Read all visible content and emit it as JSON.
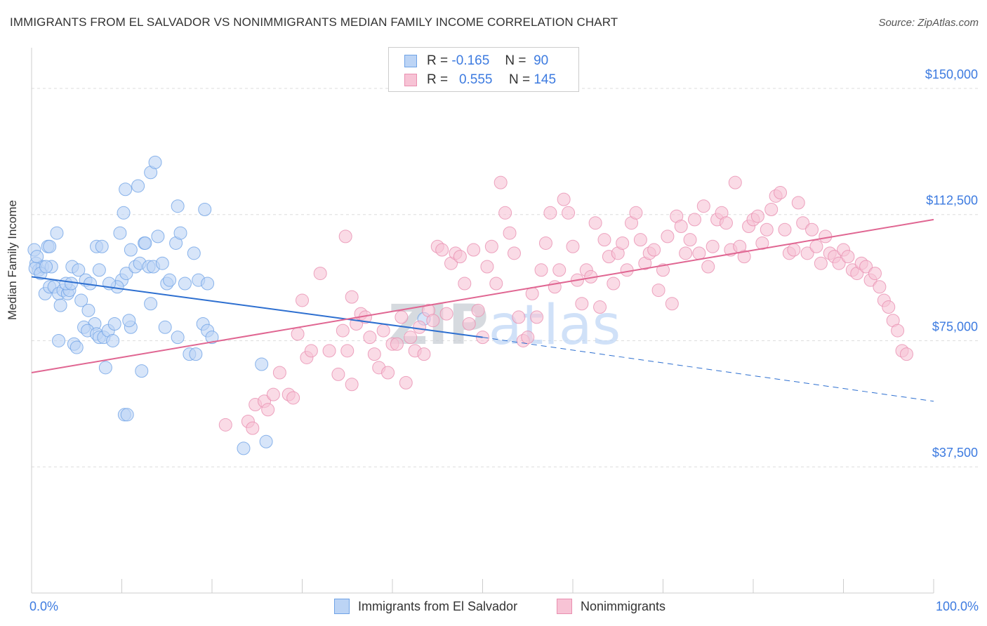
{
  "title": "IMMIGRANTS FROM EL SALVADOR VS NONIMMIGRANTS MEDIAN FAMILY INCOME CORRELATION CHART",
  "source": "Source: ZipAtlas.com",
  "legend": {
    "r_label": "R =",
    "n_label": "N =",
    "series1": {
      "r": "-0.165",
      "n": "90"
    },
    "series2": {
      "r": "0.555",
      "n": "145"
    }
  },
  "colors": {
    "blue": "#6fa3e6",
    "blue_fill": "#bcd4f5",
    "blue_line": "#2d6fd0",
    "pink": "#e98fb0",
    "pink_fill": "#f7c3d5",
    "pink_line": "#e06692",
    "tick_text": "#3d7be0",
    "grid": "#dddddd"
  },
  "chart_data": {
    "type": "scatter",
    "title": "IMMIGRANTS FROM EL SALVADOR VS NONIMMIGRANTS MEDIAN FAMILY INCOME CORRELATION CHART",
    "xlabel": "",
    "ylabel": "Median Family Income",
    "xlim": [
      0,
      100
    ],
    "ylim": [
      0,
      160000
    ],
    "x_tick_labels": [
      "0.0%",
      "100.0%"
    ],
    "y_ticks": [
      37500,
      75000,
      112500,
      150000
    ],
    "y_tick_labels": [
      "$37,500",
      "$75,000",
      "$112,500",
      "$150,000"
    ],
    "grid": true,
    "legend_position": "bottom",
    "watermark": "ZIPatlas",
    "series": [
      {
        "name": "Immigrants from El Salvador",
        "r": -0.165,
        "n": 90,
        "trend": {
          "x0": 0,
          "y0": 94000,
          "x1": 50,
          "y1": 76000,
          "dashed_to_x": 100,
          "dashed_to_y": 57000
        },
        "points": [
          [
            0.3,
            102000
          ],
          [
            0.5,
            98000
          ],
          [
            0.8,
            96000
          ],
          [
            1.2,
            97000
          ],
          [
            0.4,
            96500
          ],
          [
            1.8,
            103000
          ],
          [
            2.2,
            97000
          ],
          [
            2.8,
            107000
          ],
          [
            1.5,
            89000
          ],
          [
            2.0,
            91000
          ],
          [
            2.5,
            91000
          ],
          [
            3.0,
            89000
          ],
          [
            3.5,
            90000
          ],
          [
            4.0,
            89000
          ],
          [
            4.2,
            90000
          ],
          [
            3.2,
            85500
          ],
          [
            3.8,
            92000
          ],
          [
            4.5,
            97000
          ],
          [
            5.2,
            96000
          ],
          [
            6.0,
            93000
          ],
          [
            6.5,
            92000
          ],
          [
            5.5,
            87000
          ],
          [
            6.3,
            84000
          ],
          [
            7.0,
            80000
          ],
          [
            5.8,
            79000
          ],
          [
            6.2,
            78000
          ],
          [
            7.2,
            77000
          ],
          [
            7.5,
            76000
          ],
          [
            8.0,
            76000
          ],
          [
            8.5,
            78000
          ],
          [
            9.0,
            75000
          ],
          [
            3.0,
            75000
          ],
          [
            4.7,
            74000
          ],
          [
            5.0,
            73000
          ],
          [
            8.2,
            67000
          ],
          [
            9.2,
            80000
          ],
          [
            10.0,
            93000
          ],
          [
            10.5,
            95000
          ],
          [
            11.0,
            102000
          ],
          [
            11.5,
            97000
          ],
          [
            12.0,
            98000
          ],
          [
            12.5,
            104000
          ],
          [
            13.0,
            97000
          ],
          [
            13.5,
            97000
          ],
          [
            14.0,
            106000
          ],
          [
            14.5,
            98000
          ],
          [
            15.0,
            92000
          ],
          [
            15.3,
            93000
          ],
          [
            16.0,
            104000
          ],
          [
            16.5,
            107000
          ],
          [
            17.0,
            92000
          ],
          [
            18.0,
            101000
          ],
          [
            18.5,
            93000
          ],
          [
            19.0,
            80000
          ],
          [
            19.5,
            78000
          ],
          [
            20.0,
            76000
          ],
          [
            17.5,
            71000
          ],
          [
            18.2,
            71000
          ],
          [
            14.8,
            79000
          ],
          [
            16.2,
            76000
          ],
          [
            12.2,
            66000
          ],
          [
            13.2,
            86000
          ],
          [
            11.0,
            79000
          ],
          [
            10.8,
            81000
          ],
          [
            9.5,
            91000
          ],
          [
            7.2,
            103000
          ],
          [
            7.8,
            103000
          ],
          [
            9.8,
            107000
          ],
          [
            10.2,
            113000
          ],
          [
            10.4,
            120000
          ],
          [
            11.8,
            121000
          ],
          [
            13.2,
            125000
          ],
          [
            13.7,
            128000
          ],
          [
            16.2,
            115000
          ],
          [
            19.2,
            114000
          ],
          [
            19.5,
            92000
          ],
          [
            12.6,
            104000
          ],
          [
            7.5,
            96000
          ],
          [
            2.0,
            103000
          ],
          [
            1.0,
            95000
          ],
          [
            0.6,
            100000
          ],
          [
            1.6,
            97000
          ],
          [
            10.3,
            53000
          ],
          [
            10.6,
            53000
          ],
          [
            23.5,
            43000
          ],
          [
            25.5,
            68000
          ],
          [
            26.0,
            45000
          ],
          [
            43.5,
            81500
          ],
          [
            8.6,
            92000
          ],
          [
            4.4,
            92000
          ]
        ]
      },
      {
        "name": "Nonimmigrants",
        "r": 0.555,
        "n": 145,
        "trend": {
          "x0": 0,
          "y0": 65500,
          "x1": 100,
          "y1": 111000
        },
        "points": [
          [
            21.5,
            50000
          ],
          [
            24.0,
            51000
          ],
          [
            24.8,
            56000
          ],
          [
            25.8,
            57000
          ],
          [
            26.2,
            54500
          ],
          [
            26.8,
            59000
          ],
          [
            27.5,
            65500
          ],
          [
            28.5,
            59000
          ],
          [
            29.0,
            58000
          ],
          [
            24.5,
            49000
          ],
          [
            29.5,
            77000
          ],
          [
            30.0,
            87000
          ],
          [
            30.5,
            70000
          ],
          [
            31.0,
            72000
          ],
          [
            32.0,
            95000
          ],
          [
            33.0,
            72000
          ],
          [
            34.0,
            65000
          ],
          [
            34.5,
            78000
          ],
          [
            35.0,
            72000
          ],
          [
            35.5,
            88000
          ],
          [
            36.0,
            80000
          ],
          [
            36.5,
            83000
          ],
          [
            37.0,
            82000
          ],
          [
            37.5,
            76000
          ],
          [
            38.0,
            71000
          ],
          [
            38.5,
            67000
          ],
          [
            39.0,
            78000
          ],
          [
            39.5,
            65500
          ],
          [
            40.0,
            74000
          ],
          [
            40.5,
            74000
          ],
          [
            41.0,
            82000
          ],
          [
            41.5,
            62500
          ],
          [
            42.0,
            76000
          ],
          [
            42.5,
            72000
          ],
          [
            43.0,
            79000
          ],
          [
            43.5,
            71000
          ],
          [
            44.0,
            84000
          ],
          [
            44.5,
            81000
          ],
          [
            34.8,
            106000
          ],
          [
            35.5,
            62000
          ],
          [
            45.0,
            103000
          ],
          [
            45.5,
            102000
          ],
          [
            46.0,
            83000
          ],
          [
            46.5,
            98000
          ],
          [
            47.0,
            101000
          ],
          [
            47.5,
            100000
          ],
          [
            48.0,
            92000
          ],
          [
            48.5,
            80000
          ],
          [
            49.0,
            102000
          ],
          [
            49.5,
            84000
          ],
          [
            50.0,
            76000
          ],
          [
            50.5,
            97000
          ],
          [
            51.0,
            103000
          ],
          [
            51.5,
            92000
          ],
          [
            52.0,
            122000
          ],
          [
            52.5,
            113000
          ],
          [
            53.0,
            107000
          ],
          [
            53.5,
            101000
          ],
          [
            54.0,
            82000
          ],
          [
            54.5,
            75000
          ],
          [
            55.0,
            76000
          ],
          [
            55.5,
            89000
          ],
          [
            56.0,
            82000
          ],
          [
            56.5,
            96000
          ],
          [
            57.0,
            104000
          ],
          [
            57.5,
            113000
          ],
          [
            58.0,
            91000
          ],
          [
            58.5,
            96000
          ],
          [
            59.0,
            117000
          ],
          [
            59.5,
            113000
          ],
          [
            60.0,
            103000
          ],
          [
            60.5,
            93000
          ],
          [
            61.0,
            86000
          ],
          [
            61.5,
            96000
          ],
          [
            62.0,
            94000
          ],
          [
            62.5,
            110000
          ],
          [
            63.0,
            85000
          ],
          [
            63.5,
            105000
          ],
          [
            64.0,
            100000
          ],
          [
            64.5,
            92000
          ],
          [
            65.0,
            101000
          ],
          [
            65.5,
            104000
          ],
          [
            66.0,
            96000
          ],
          [
            66.5,
            110000
          ],
          [
            67.0,
            113000
          ],
          [
            67.5,
            105000
          ],
          [
            68.0,
            98000
          ],
          [
            68.5,
            101000
          ],
          [
            69.0,
            102000
          ],
          [
            69.5,
            90000
          ],
          [
            70.0,
            96000
          ],
          [
            70.5,
            106000
          ],
          [
            71.0,
            86000
          ],
          [
            71.5,
            112000
          ],
          [
            72.0,
            109000
          ],
          [
            72.5,
            101000
          ],
          [
            73.0,
            105000
          ],
          [
            73.5,
            111000
          ],
          [
            74.0,
            101000
          ],
          [
            74.5,
            115000
          ],
          [
            75.0,
            97000
          ],
          [
            75.5,
            103000
          ],
          [
            76.0,
            111000
          ],
          [
            76.5,
            113000
          ],
          [
            77.0,
            110000
          ],
          [
            77.5,
            102000
          ],
          [
            78.0,
            122000
          ],
          [
            78.5,
            103000
          ],
          [
            79.0,
            100000
          ],
          [
            79.5,
            109000
          ],
          [
            80.0,
            111000
          ],
          [
            80.5,
            112000
          ],
          [
            81.0,
            104000
          ],
          [
            81.5,
            108000
          ],
          [
            82.0,
            114000
          ],
          [
            82.5,
            118000
          ],
          [
            83.0,
            119000
          ],
          [
            83.5,
            108000
          ],
          [
            84.0,
            101000
          ],
          [
            84.5,
            102000
          ],
          [
            85.0,
            116000
          ],
          [
            85.5,
            110000
          ],
          [
            86.0,
            101000
          ],
          [
            86.5,
            108000
          ],
          [
            87.0,
            103000
          ],
          [
            87.5,
            98000
          ],
          [
            88.0,
            106000
          ],
          [
            88.5,
            101000
          ],
          [
            89.0,
            100000
          ],
          [
            89.5,
            98000
          ],
          [
            90.0,
            102000
          ],
          [
            90.5,
            100000
          ],
          [
            91.0,
            96000
          ],
          [
            91.5,
            95000
          ],
          [
            92.0,
            98000
          ],
          [
            92.5,
            97000
          ],
          [
            93.0,
            93000
          ],
          [
            93.5,
            95000
          ],
          [
            94.0,
            91000
          ],
          [
            94.5,
            87000
          ],
          [
            95.0,
            85000
          ],
          [
            95.5,
            81000
          ],
          [
            96.0,
            78000
          ],
          [
            96.5,
            72000
          ],
          [
            97.0,
            71000
          ]
        ]
      }
    ]
  },
  "bottom_legend": {
    "series1_label": "Immigrants from El Salvador",
    "series2_label": "Nonimmigrants"
  }
}
